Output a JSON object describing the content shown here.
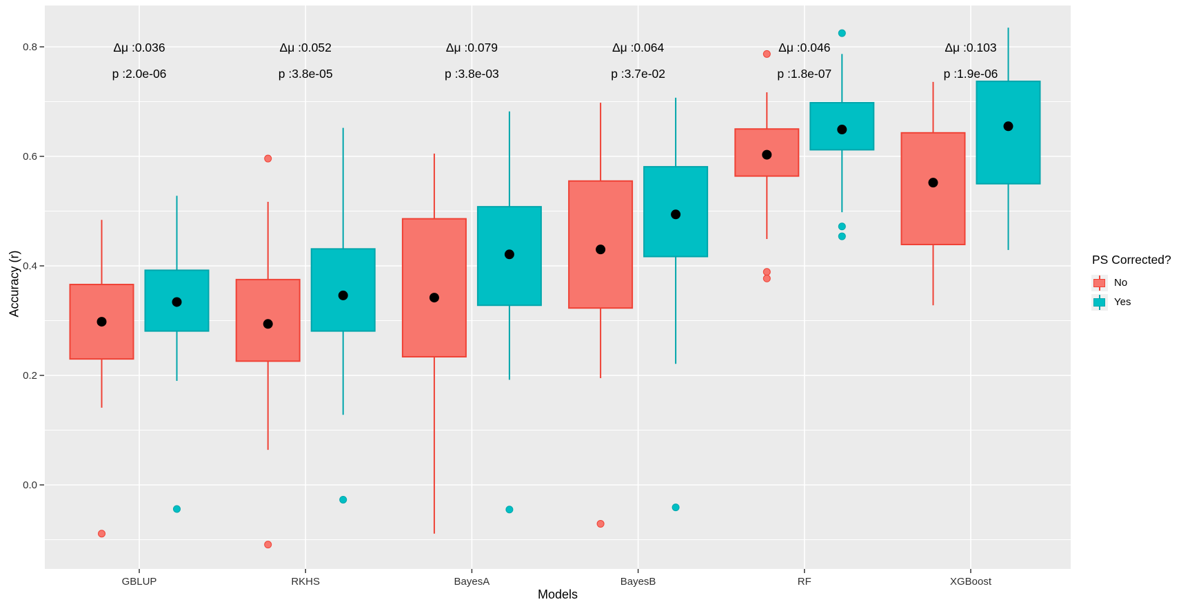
{
  "chart_data": {
    "type": "grouped_boxplot",
    "title": "",
    "xlabel": "Models",
    "ylabel": "Accuracy (r)",
    "categories": [
      "GBLUP",
      "RKHS",
      "BayesA",
      "BayesB",
      "RF",
      "XGBoost"
    ],
    "yticks": [
      0.0,
      0.2,
      0.4,
      0.6,
      0.8
    ],
    "ytick_labels": [
      "0.0",
      "0.2",
      "0.4",
      "0.6",
      "0.8"
    ],
    "y_minor": [
      -0.1,
      0.1,
      0.3,
      0.5,
      0.7
    ],
    "ylim": [
      -0.155,
      0.876
    ],
    "grid": true,
    "legend": {
      "title": "PS Corrected?",
      "position": "right",
      "entries": [
        {
          "label": "No",
          "fill": "#F8766D",
          "stroke": "#EF4135"
        },
        {
          "label": "Yes",
          "fill": "#00BFC4",
          "stroke": "#00A5AB"
        }
      ]
    },
    "annotations": [
      {
        "delta_mu": "Δμ :0.036",
        "p_value": "p :2.0e-06"
      },
      {
        "delta_mu": "Δμ :0.052",
        "p_value": "p :3.8e-05"
      },
      {
        "delta_mu": "Δμ :0.079",
        "p_value": "p :3.8e-03"
      },
      {
        "delta_mu": "Δμ :0.064",
        "p_value": "p :3.7e-02"
      },
      {
        "delta_mu": "Δμ :0.046",
        "p_value": "p :1.8e-07"
      },
      {
        "delta_mu": "Δμ :0.103",
        "p_value": "p :1.9e-06"
      }
    ],
    "series": [
      {
        "name": "No",
        "boxes": [
          {
            "category": "GBLUP",
            "q1": 0.23,
            "q3": 0.366,
            "mean": 0.298,
            "whisker_low": 0.141,
            "whisker_high": 0.484,
            "outliers": [
              -0.089
            ]
          },
          {
            "category": "RKHS",
            "q1": 0.226,
            "q3": 0.375,
            "mean": 0.294,
            "whisker_low": 0.064,
            "whisker_high": 0.517,
            "outliers": [
              0.596,
              -0.109
            ]
          },
          {
            "category": "BayesA",
            "q1": 0.234,
            "q3": 0.486,
            "mean": 0.342,
            "whisker_low": -0.089,
            "whisker_high": 0.605,
            "outliers": []
          },
          {
            "category": "BayesB",
            "q1": 0.323,
            "q3": 0.555,
            "mean": 0.43,
            "whisker_low": 0.195,
            "whisker_high": 0.698,
            "outliers": [
              -0.071
            ]
          },
          {
            "category": "RF",
            "q1": 0.564,
            "q3": 0.65,
            "mean": 0.603,
            "whisker_low": 0.449,
            "whisker_high": 0.717,
            "outliers": [
              0.787,
              0.389,
              0.377
            ]
          },
          {
            "category": "XGBoost",
            "q1": 0.439,
            "q3": 0.643,
            "mean": 0.552,
            "whisker_low": 0.328,
            "whisker_high": 0.736,
            "outliers": []
          }
        ]
      },
      {
        "name": "Yes",
        "boxes": [
          {
            "category": "GBLUP",
            "q1": 0.281,
            "q3": 0.392,
            "mean": 0.334,
            "whisker_low": 0.19,
            "whisker_high": 0.528,
            "outliers": [
              -0.044
            ]
          },
          {
            "category": "RKHS",
            "q1": 0.281,
            "q3": 0.431,
            "mean": 0.346,
            "whisker_low": 0.128,
            "whisker_high": 0.652,
            "outliers": [
              -0.027
            ]
          },
          {
            "category": "BayesA",
            "q1": 0.328,
            "q3": 0.508,
            "mean": 0.421,
            "whisker_low": 0.192,
            "whisker_high": 0.682,
            "outliers": [
              -0.045
            ]
          },
          {
            "category": "BayesB",
            "q1": 0.417,
            "q3": 0.581,
            "mean": 0.494,
            "whisker_low": 0.221,
            "whisker_high": 0.707,
            "outliers": [
              -0.041
            ]
          },
          {
            "category": "RF",
            "q1": 0.612,
            "q3": 0.698,
            "mean": 0.649,
            "whisker_low": 0.498,
            "whisker_high": 0.787,
            "outliers": [
              0.825,
              0.472,
              0.454
            ]
          },
          {
            "category": "XGBoost",
            "q1": 0.55,
            "q3": 0.737,
            "mean": 0.655,
            "whisker_low": 0.429,
            "whisker_high": 0.835,
            "outliers": []
          }
        ]
      }
    ],
    "style": {
      "panel_bg": "#EBEBEB",
      "grid_color": "#FFFFFF",
      "no_fill": "#F8766D",
      "no_stroke": "#EF4135",
      "yes_fill": "#00BFC4",
      "yes_stroke": "#00A5AB",
      "mean_dot": "#000000",
      "axis_text": "#303030",
      "tick_mark": "#333333",
      "legend_key_bg": "#F0F0F0"
    }
  }
}
